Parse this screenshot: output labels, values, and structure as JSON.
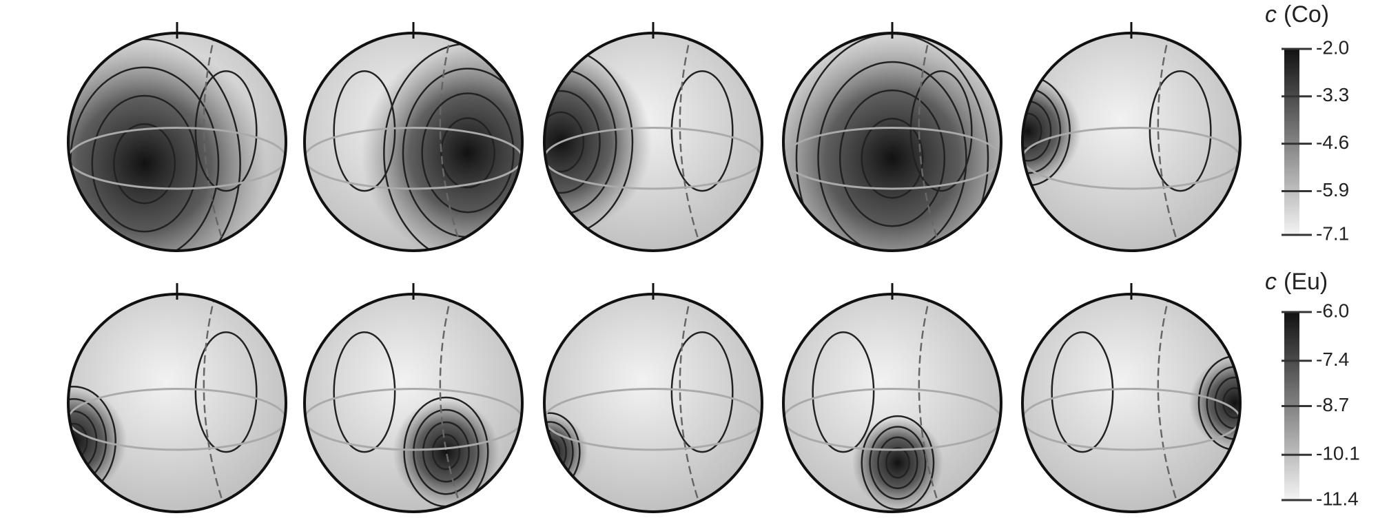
{
  "colorbars": [
    {
      "variable": "c",
      "element": "(Co)",
      "ticks": [
        {
          "value": -2.0,
          "label": "-2.0"
        },
        {
          "value": -3.3,
          "label": "-3.3"
        },
        {
          "value": -4.6,
          "label": "-4.6"
        },
        {
          "value": -5.9,
          "label": "-5.9"
        },
        {
          "value": -7.1,
          "label": "-7.1"
        }
      ]
    },
    {
      "variable": "c",
      "element": "(Eu)",
      "ticks": [
        {
          "value": -6.0,
          "label": "-6.0"
        },
        {
          "value": -7.4,
          "label": "-7.4"
        },
        {
          "value": -8.7,
          "label": "-8.7"
        },
        {
          "value": -10.1,
          "label": "-10.1"
        },
        {
          "value": -11.4,
          "label": "-11.4"
        }
      ]
    }
  ]
}
